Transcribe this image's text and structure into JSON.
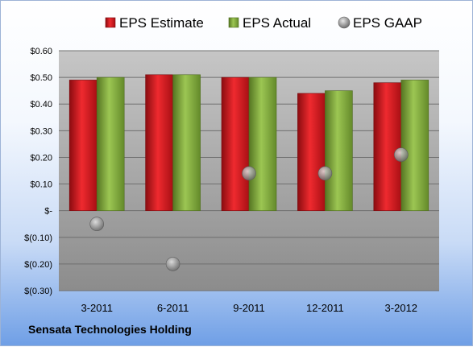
{
  "company": "Sensata Technologies Holding",
  "colors": {
    "estimate": "#d4141c",
    "actual": "#7fa83a",
    "gaap": "#a9a9a9",
    "plot_bg_top": "#c4c4c4",
    "plot_bg_bottom": "#8e8e8e"
  },
  "chart_data": {
    "type": "bar",
    "categories": [
      "3-2011",
      "6-2011",
      "9-2011",
      "12-2011",
      "3-2012"
    ],
    "series": [
      {
        "name": "EPS Estimate",
        "style": "bar",
        "values": [
          0.49,
          0.51,
          0.5,
          0.44,
          0.48
        ]
      },
      {
        "name": "EPS Actual",
        "style": "bar",
        "values": [
          0.5,
          0.51,
          0.5,
          0.45,
          0.49
        ]
      },
      {
        "name": "EPS GAAP",
        "style": "marker",
        "values": [
          -0.05,
          -0.2,
          0.14,
          0.14,
          0.21
        ]
      }
    ],
    "ylim": [
      -0.3,
      0.6
    ],
    "yticks": [
      0.6,
      0.5,
      0.4,
      0.3,
      0.2,
      0.1,
      0,
      -0.1,
      -0.2,
      -0.3
    ],
    "ytick_labels": [
      "$0.60",
      "$0.50",
      "$0.40",
      "$0.30",
      "$0.20",
      "$0.10",
      "$-",
      "$(0.10)",
      "$(0.20)",
      "$(0.30)"
    ],
    "legend_position": "top",
    "grid": true
  }
}
